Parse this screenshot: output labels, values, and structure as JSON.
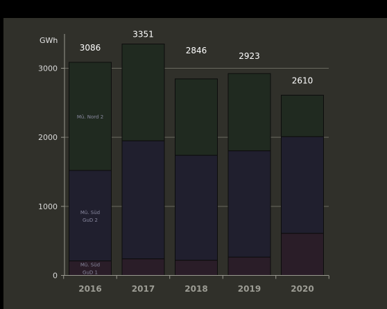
{
  "chart_data": {
    "type": "bar",
    "stacked": true,
    "ylabel": "GWh",
    "ylim": [
      0,
      3400
    ],
    "y_ticks": [
      "0",
      "1000",
      "2000",
      "3000"
    ],
    "y_tick_values": [
      0,
      1000,
      2000,
      3000
    ],
    "grid": true,
    "categories": [
      "2016",
      "2017",
      "2018",
      "2019",
      "2020"
    ],
    "totals": [
      3086,
      3351,
      2846,
      2923,
      2610
    ],
    "total_labels": [
      "3086",
      "3351",
      "2846",
      "2923",
      "2610"
    ],
    "series": [
      {
        "name": "Mü. Süd GuD 1",
        "label_lines": [
          "Mü. Süd",
          "GuD 1"
        ],
        "color": "#2a1d28",
        "values": [
          210,
          240,
          220,
          265,
          610
        ]
      },
      {
        "name": "Mü. Süd GuD 2",
        "label_lines": [
          "Mü. Süd",
          "GuD 2"
        ],
        "color": "#201f2e",
        "values": [
          1310,
          1710,
          1520,
          1540,
          1400
        ]
      },
      {
        "name": "Mü. Nord 2",
        "label_lines": [
          "Mü. Nord 2"
        ],
        "color": "#202a20",
        "values": [
          1566,
          1401,
          1106,
          1118,
          600
        ]
      }
    ]
  }
}
